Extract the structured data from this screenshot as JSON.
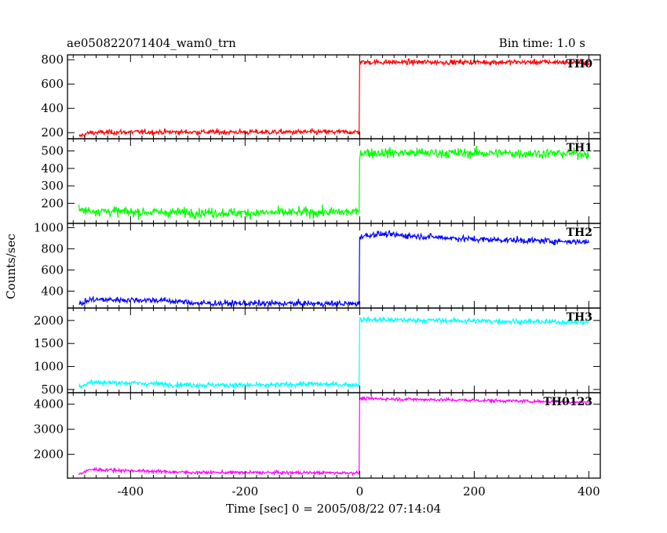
{
  "header": {
    "left": "ae050822071404_wam0_trn",
    "right": "Bin time: 1.0 s"
  },
  "chart_data": {
    "type": "line",
    "title": "ae050822071404_wam0_trn",
    "bin_time": "Bin time: 1.0 s",
    "xlabel": "Time [sec] 0 = 2005/08/22 07:14:04",
    "ylabel": "Counts/sec",
    "xlim": [
      -510,
      420
    ],
    "xticks": [
      -400,
      -200,
      0,
      200,
      400
    ],
    "grid": false,
    "panels": [
      {
        "name": "TH0",
        "color": "#ff0000",
        "ylim": [
          150,
          840
        ],
        "yticks": [
          200,
          400,
          600,
          800
        ],
        "start_time": -490,
        "end_time": 400,
        "profile": [
          [
            -490,
            170
          ],
          [
            -470,
            200
          ],
          [
            -400,
            205
          ],
          [
            -200,
            205
          ],
          [
            -1,
            205
          ],
          [
            0,
            780
          ],
          [
            400,
            780
          ]
        ],
        "noise": 15
      },
      {
        "name": "TH1",
        "color": "#00ff00",
        "ylim": [
          85,
          570
        ],
        "yticks": [
          200,
          300,
          400,
          500
        ],
        "start_time": -490,
        "end_time": 400,
        "profile": [
          [
            -490,
            160
          ],
          [
            -400,
            150
          ],
          [
            -200,
            145
          ],
          [
            -1,
            150
          ],
          [
            0,
            490
          ],
          [
            400,
            485
          ]
        ],
        "noise": 20
      },
      {
        "name": "TH2",
        "color": "#0000ff",
        "ylim": [
          240,
          1040
        ],
        "yticks": [
          400,
          600,
          800,
          1000
        ],
        "start_time": -490,
        "end_time": 400,
        "profile": [
          [
            -490,
            270
          ],
          [
            -470,
            320
          ],
          [
            -350,
            315
          ],
          [
            -280,
            285
          ],
          [
            -1,
            280
          ],
          [
            0,
            915
          ],
          [
            30,
            940
          ],
          [
            200,
            890
          ],
          [
            400,
            865
          ]
        ],
        "noise": 20
      },
      {
        "name": "TH3",
        "color": "#00ffff",
        "ylim": [
          430,
          2270
        ],
        "yticks": [
          500,
          1000,
          1500,
          2000
        ],
        "start_time": -490,
        "end_time": 400,
        "profile": [
          [
            -490,
            560
          ],
          [
            -470,
            660
          ],
          [
            -400,
            640
          ],
          [
            -300,
            600
          ],
          [
            -160,
            590
          ],
          [
            -100,
            620
          ],
          [
            -1,
            600
          ],
          [
            0,
            2020
          ],
          [
            400,
            1960
          ]
        ],
        "noise": 40
      },
      {
        "name": "TH0123",
        "color": "#ff00ff",
        "ylim": [
          1050,
          4460
        ],
        "yticks": [
          2000,
          3000,
          4000
        ],
        "start_time": -490,
        "end_time": 400,
        "profile": [
          [
            -490,
            1200
          ],
          [
            -470,
            1400
          ],
          [
            -400,
            1350
          ],
          [
            -300,
            1280
          ],
          [
            -1,
            1260
          ],
          [
            0,
            4230
          ],
          [
            400,
            4080
          ]
        ],
        "noise": 45
      }
    ]
  }
}
